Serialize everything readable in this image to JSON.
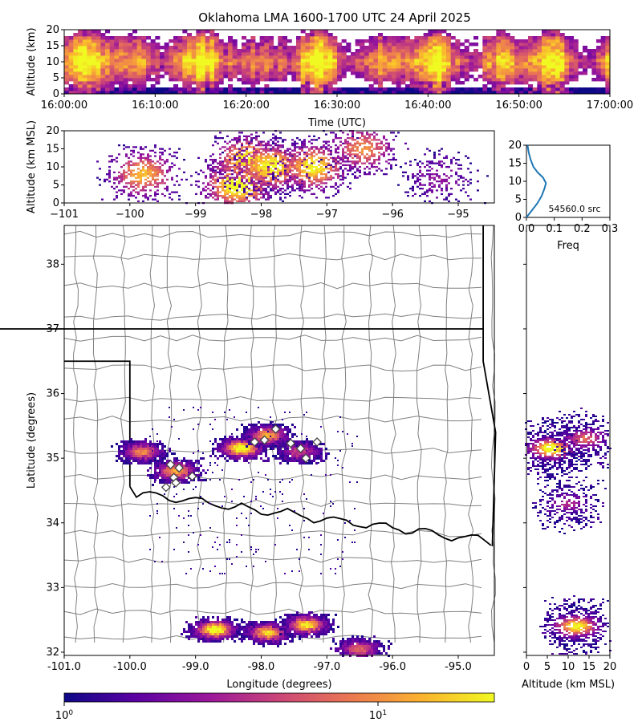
{
  "colors": {
    "cmap": [
      "#0d0887",
      "#5b02a3",
      "#9a179b",
      "#cb4678",
      "#eb7852",
      "#fbb32f",
      "#f0f921"
    ],
    "county_line": "#808080",
    "state_line": "#000000",
    "histogram_line": "#1f77b4"
  },
  "chart_data": [
    {
      "id": "time_height",
      "type": "heatmap",
      "title": "Oklahoma LMA 1600-1700 UTC 24 April 2025",
      "xlabel": "Time (UTC)",
      "ylabel": "Altitude (km)",
      "xlim": [
        "16:00:00",
        "17:00:00"
      ],
      "ylim": [
        0,
        20
      ],
      "x_ticks": [
        "16:00:00",
        "16:10:00",
        "16:20:00",
        "16:30:00",
        "16:40:00",
        "16:50:00",
        "17:00:00"
      ],
      "y_ticks": [
        "0",
        "5",
        "10",
        "15",
        "20"
      ]
    },
    {
      "id": "lon_alt",
      "type": "heatmap",
      "ylabel": "Altitude (km MSL)",
      "xlim": [
        -101,
        -94.45
      ],
      "ylim": [
        0,
        20
      ],
      "x_ticks": [
        "−101",
        "−100",
        "−99",
        "−98",
        "−97",
        "−96",
        "−95"
      ],
      "y_ticks": [
        "0",
        "5",
        "10",
        "15",
        "20"
      ],
      "clusters": [
        {
          "lon": -99.8,
          "alt": 8,
          "intensity": 0.7
        },
        {
          "lon": -98.35,
          "alt": 5,
          "intensity": 1.0
        },
        {
          "lon": -98.2,
          "alt": 12,
          "intensity": 0.85
        },
        {
          "lon": -97.85,
          "alt": 10,
          "intensity": 0.9
        },
        {
          "lon": -97.2,
          "alt": 10,
          "intensity": 0.85
        },
        {
          "lon": -96.45,
          "alt": 15,
          "intensity": 0.6
        },
        {
          "lon": -95.3,
          "alt": 7,
          "intensity": 0.2
        }
      ]
    },
    {
      "id": "alt_histogram",
      "type": "line",
      "xlabel": "Freq",
      "xlim": [
        0.0,
        0.3
      ],
      "ylim": [
        0,
        20
      ],
      "x_ticks": [
        "0.0",
        "0.1",
        "0.2",
        "0.3"
      ],
      "y_ticks": [
        "0",
        "5",
        "10",
        "15",
        "20"
      ],
      "annotation": "54560.0 src",
      "points": [
        [
          0.0,
          0.0
        ],
        [
          0.01,
          1.0
        ],
        [
          0.025,
          2.5
        ],
        [
          0.04,
          4.0
        ],
        [
          0.055,
          6.0
        ],
        [
          0.065,
          8.0
        ],
        [
          0.07,
          9.5
        ],
        [
          0.06,
          11.0
        ],
        [
          0.04,
          12.5
        ],
        [
          0.025,
          14.0
        ],
        [
          0.015,
          16.0
        ],
        [
          0.008,
          18.0
        ],
        [
          0.004,
          20.0
        ]
      ]
    },
    {
      "id": "plan_view",
      "type": "heatmap",
      "xlabel": "Longitude (degrees)",
      "ylabel": "Latitude (degrees)",
      "xlim": [
        -101.0,
        -94.45
      ],
      "ylim": [
        31.95,
        38.6
      ],
      "x_ticks": [
        "-101.0",
        "-100.0",
        "-99.0",
        "-98.0",
        "-97.0",
        "-96.0",
        "-95.0"
      ],
      "y_ticks": [
        "32",
        "33",
        "34",
        "35",
        "36",
        "37",
        "38"
      ],
      "clusters": [
        {
          "lon": -99.8,
          "lat": 35.1,
          "intensity": 0.6
        },
        {
          "lon": -99.3,
          "lat": 34.8,
          "intensity": 0.7
        },
        {
          "lon": -98.3,
          "lat": 35.15,
          "intensity": 1.0
        },
        {
          "lon": -97.9,
          "lat": 35.35,
          "intensity": 0.7
        },
        {
          "lon": -97.4,
          "lat": 35.1,
          "intensity": 0.4
        },
        {
          "lon": -98.7,
          "lat": 32.35,
          "intensity": 1.0
        },
        {
          "lon": -97.9,
          "lat": 32.3,
          "intensity": 0.8
        },
        {
          "lon": -97.3,
          "lat": 32.42,
          "intensity": 0.85
        },
        {
          "lon": -96.5,
          "lat": 32.05,
          "intensity": 0.5
        }
      ],
      "stations": [
        [
          -99.45,
          34.55
        ],
        [
          -99.33,
          34.7
        ],
        [
          -99.3,
          34.62
        ],
        [
          -99.25,
          34.85
        ],
        [
          -99.38,
          34.9
        ],
        [
          -99.05,
          34.72
        ],
        [
          -98.1,
          35.25
        ],
        [
          -97.95,
          35.28
        ],
        [
          -97.78,
          35.45
        ],
        [
          -97.55,
          35.23
        ],
        [
          -97.4,
          35.15
        ],
        [
          -97.32,
          35.0
        ],
        [
          -97.15,
          35.25
        ]
      ]
    },
    {
      "id": "alt_lat",
      "type": "heatmap",
      "xlabel": "Altitude (km MSL)",
      "xlim": [
        0,
        20
      ],
      "ylim": [
        31.95,
        38.6
      ],
      "x_ticks": [
        "0",
        "5",
        "10",
        "15",
        "20"
      ],
      "clusters": [
        {
          "alt": 6,
          "lat": 35.15,
          "intensity": 1.0
        },
        {
          "alt": 14,
          "lat": 35.3,
          "intensity": 0.5
        },
        {
          "alt": 10,
          "lat": 34.3,
          "intensity": 0.3
        },
        {
          "alt": 12,
          "lat": 32.4,
          "intensity": 0.9
        }
      ]
    },
    {
      "id": "colorbar",
      "type": "heatmap",
      "scale": "log",
      "range": [
        1,
        30
      ],
      "ticks": [
        "10",
        "10"
      ],
      "tick_superscripts": [
        "0",
        "1"
      ]
    }
  ]
}
